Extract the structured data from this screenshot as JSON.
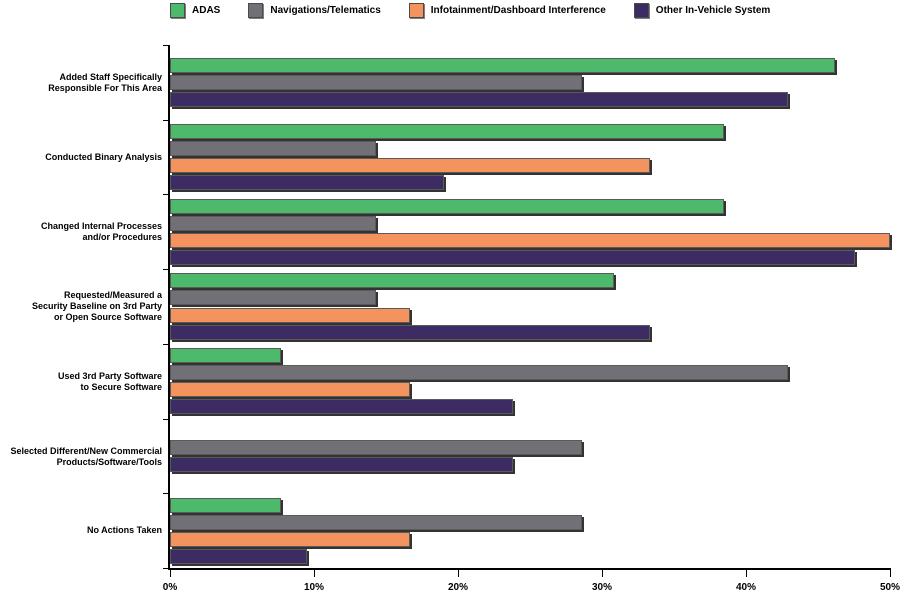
{
  "chart_data": {
    "type": "bar",
    "orientation": "horizontal",
    "title": "",
    "xlabel": "",
    "ylabel": "",
    "categories": [
      "Added Staff Specifically\nResponsible For This Area",
      "Conducted Binary Analysis",
      "Changed Internal Processes\nand/or Procedures",
      "Requested/Measured a\nSecurity Baseline on 3rd Party\nor Open Source Software",
      "Used 3rd Party Software\nto Secure Software",
      "Selected Different/New Commercial\nProducts/Software/Tools",
      "No Actions Taken"
    ],
    "series": [
      {
        "name": "ADAS",
        "color": "#4cb96b",
        "values": [
          46.2,
          38.5,
          38.5,
          30.8,
          7.7,
          0,
          7.7
        ]
      },
      {
        "name": "Navigations/Telematics",
        "color": "#717076",
        "values": [
          28.6,
          14.3,
          14.3,
          14.3,
          42.9,
          28.6,
          28.6
        ]
      },
      {
        "name": "Infotainment/Dashboard Interference",
        "color": "#f5935f",
        "values": [
          0,
          33.3,
          50.0,
          16.7,
          16.7,
          0,
          16.7
        ]
      },
      {
        "name": "Other In-Vehicle System",
        "color": "#3d2b63",
        "values": [
          42.9,
          19.0,
          47.6,
          33.3,
          23.8,
          23.8,
          9.5
        ]
      }
    ],
    "x_ticks": [
      "0%",
      "10%",
      "20%",
      "30%",
      "40%",
      "50%"
    ],
    "xlim": [
      0,
      50
    ],
    "grid": false,
    "legend_position": "top"
  }
}
